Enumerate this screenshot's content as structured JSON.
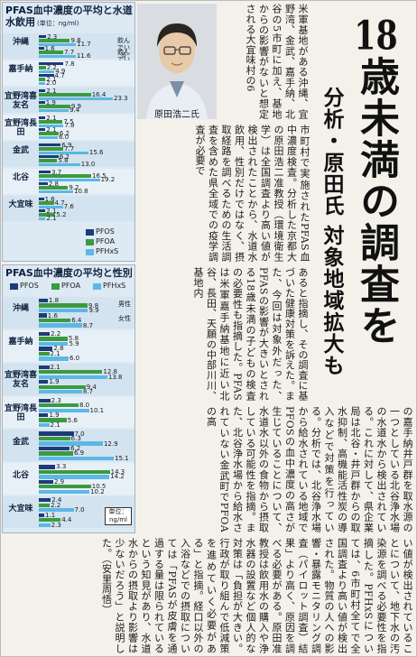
{
  "headline": "18歳未満の調査を",
  "subheadline": "分析・原田氏 対象地域拡大も",
  "photo_caption": "原田浩二氏",
  "body": [
    "米軍基地がある沖縄、宜野湾、金武、嘉手納、北谷の5市町に加え、基地からの影響がないと想定される大宜味村の6",
    "市町村で実施されたPFAS血中濃度検査。分析した京都大の原田浩二准教授（環境衛生学）は全国調査より高い値が検出されたことから、水道水飲用、性別だけではなく、摂取経路を調べるための生活調査を含めた県全域での疫学調査が必要で",
    "あると指摘し、その調査に基づいた健康対策を訴えた。また、今回は対象外だった、PFASの影響が大きいとされる18歳未満の子どもの検査の必要性も指摘した。PFASは米軍嘉手納基地に近い北谷、長田、天願の中部川川、基地内",
    "の嘉手納井戸群を取水源の一つとしている北谷浄水場の水道水から検出されている。これに対して、県企業局は北谷・井戸群からの取水抑制、高機能活性炭の導入などで対策を行っている。分析では、北谷浄水場から給水されている地域でPFOSの血中濃度の高さが生じていることについて、水道水以外の食物から摂取している可能性を指摘。また、北谷浄水場から給水されていない金武町でPFOAの高",
    "い値が検出されていることについて、地下水の汚染源を調べる必要性を指摘した。PFHxSについては、6市町村全てで全国調査より高い値が検出された。物質の人への影響・暴露モニタリング調査（パイロット調査）結果」より高く、原因を調べる必要がある。原田准教授は飲用水の購入や浄水器の設置など個人的な対策は「負担が大きい。行政が取り組んで低減策を進めていく必要がある」と指摘。経口以外の入浴などでの摂取については「PFASが皮膚を通過する量は限られているという知見があり、水道水からの摂取より影響は少ないだろう」と説明した。（安里周悟）"
  ],
  "chart_data": [
    {
      "type": "bar",
      "title": "PFAS血中濃度の平均と水道水飲用",
      "unit": "(単位：ng/ml)",
      "categories": [
        "沖縄",
        "嘉手納",
        "宜野湾喜友名",
        "宜野湾長田",
        "金武",
        "北谷",
        "大宜味"
      ],
      "groups": [
        "飲んでいる",
        "飲んでいない"
      ],
      "xlim": [
        0,
        25
      ],
      "series": [
        {
          "name": "PFOS",
          "color": "#1e3a78",
          "values": [
            [
              2.3,
              1.6
            ],
            [
              7.8,
              4.7
            ],
            [
              2.1,
              1.9
            ],
            [
              2.1,
              2.1
            ],
            [
              6.9,
              6.2
            ],
            [
              3.7,
              2.8
            ],
            [
              1.6,
              2.1
            ]
          ],
          "value_labels": [
            [
              "2.3",
              "1.6"
            ],
            [
              "7.8",
              "4.7"
            ],
            [
              "2.1",
              "1.9"
            ],
            [
              "2.1",
              "2.1"
            ],
            [
              "6.9",
              "6.2"
            ],
            [
              "3.7",
              "2.8"
            ],
            [
              "1.6",
              "2.1"
            ]
          ]
        },
        {
          "name": "PFOA",
          "color": "#3c9a3e",
          "values": [
            [
              9.8,
              7.7
            ],
            [
              2.2,
              2.1
            ],
            [
              16.4,
              9.9
            ],
            [
              7.5,
              6.2
            ],
            [
              7.7,
              5.8
            ],
            [
              16.5,
              9.2
            ],
            [
              4.7,
              5.2
            ]
          ],
          "value_labels": [
            [
              "9.8",
              "7.7"
            ],
            [
              "2.2",
              "2.1"
            ],
            [
              "16.4",
              "9.9"
            ],
            [
              "7.5",
              "6.2"
            ],
            [
              "7.7",
              "5.8"
            ],
            [
              "16.5",
              "9.2"
            ],
            [
              "4.7",
              "5.2"
            ]
          ]
        },
        {
          "name": "PFHxS",
          "color": "#5cb8e4",
          "values": [
            [
              11.7,
              11.6
            ],
            [
              4.9,
              2.0
            ],
            [
              23.3,
              9.4
            ],
            [
              7.8,
              6.0
            ],
            [
              15.6,
              13.0
            ],
            [
              19.2,
              10.8
            ],
            [
              7.6,
              2.1
            ]
          ],
          "value_labels": [
            [
              "11.7",
              "11.6"
            ],
            [
              "4.9",
              "2.0"
            ],
            [
              "23.3",
              "9.4"
            ],
            [
              "7.8",
              "6.0"
            ],
            [
              "15.6",
              "13.0"
            ],
            [
              "19.2",
              "10.8"
            ],
            [
              "7.6",
              "2.1"
            ]
          ]
        }
      ]
    },
    {
      "type": "bar",
      "title": "PFAS血中濃度の平均と性別",
      "unit": "単位：ng/ml",
      "categories": [
        "沖縄",
        "嘉手納",
        "宜野湾喜友名",
        "宜野湾長田",
        "金武",
        "北谷",
        "大宜味"
      ],
      "groups": [
        "男性",
        "女性"
      ],
      "xlim": [
        0,
        16
      ],
      "series": [
        {
          "name": "PFOS",
          "color": "#1e3a78",
          "values": [
            [
              1.8,
              1.6
            ],
            [
              2.2,
              2.8
            ],
            [
              2.1,
              1.9
            ],
            [
              2.3,
              1.9
            ],
            [
              7.0,
              6.2
            ],
            [
              3.3,
              2.9
            ],
            [
              2.4,
              1.1
            ]
          ],
          "value_labels": [
            [
              "1.8",
              "1.6"
            ],
            [
              "2.2",
              "2.8"
            ],
            [
              "2.1",
              "1.9"
            ],
            [
              "2.3",
              "1.9"
            ],
            [
              "7.0",
              "6.2"
            ],
            [
              "3.3",
              "2.9"
            ],
            [
              "2.4",
              "1.1"
            ]
          ]
        },
        {
          "name": "PFOA",
          "color": "#3c9a3e",
          "values": [
            [
              9.8,
              6.4
            ],
            [
              5.8,
              2.1
            ],
            [
              12.8,
              9.4
            ],
            [
              8.0,
              5.6
            ],
            [
              6.3,
              6.9
            ],
            [
              14.3,
              10.5
            ],
            [
              2.2,
              4.4
            ]
          ],
          "value_labels": [
            [
              "9.8",
              "6.4"
            ],
            [
              "5.8",
              "2.1"
            ],
            [
              "12.8",
              "9.4"
            ],
            [
              "8.0",
              "5.6"
            ],
            [
              "6.3",
              "6.9"
            ],
            [
              "14.3",
              "10.5"
            ],
            [
              "2.2",
              "4.4"
            ]
          ]
        },
        {
          "name": "PFHxS",
          "color": "#5cb8e4",
          "values": [
            [
              9.9,
              8.7
            ],
            [
              5.9,
              6.0
            ],
            [
              13.8,
              8.7
            ],
            [
              10.1,
              2.1
            ],
            [
              12.9,
              15.1
            ],
            [
              14.2,
              10.2
            ],
            [
              7.0,
              2.3
            ]
          ],
          "value_labels": [
            [
              "9.9",
              "8.7"
            ],
            [
              "5.9",
              "6.0"
            ],
            [
              "13.8",
              "8.7"
            ],
            [
              "10.1",
              "2.1"
            ],
            [
              "12.9",
              "15.1"
            ],
            [
              "14.2",
              "10.2"
            ],
            [
              "7.0",
              "2.3"
            ]
          ]
        }
      ]
    }
  ]
}
